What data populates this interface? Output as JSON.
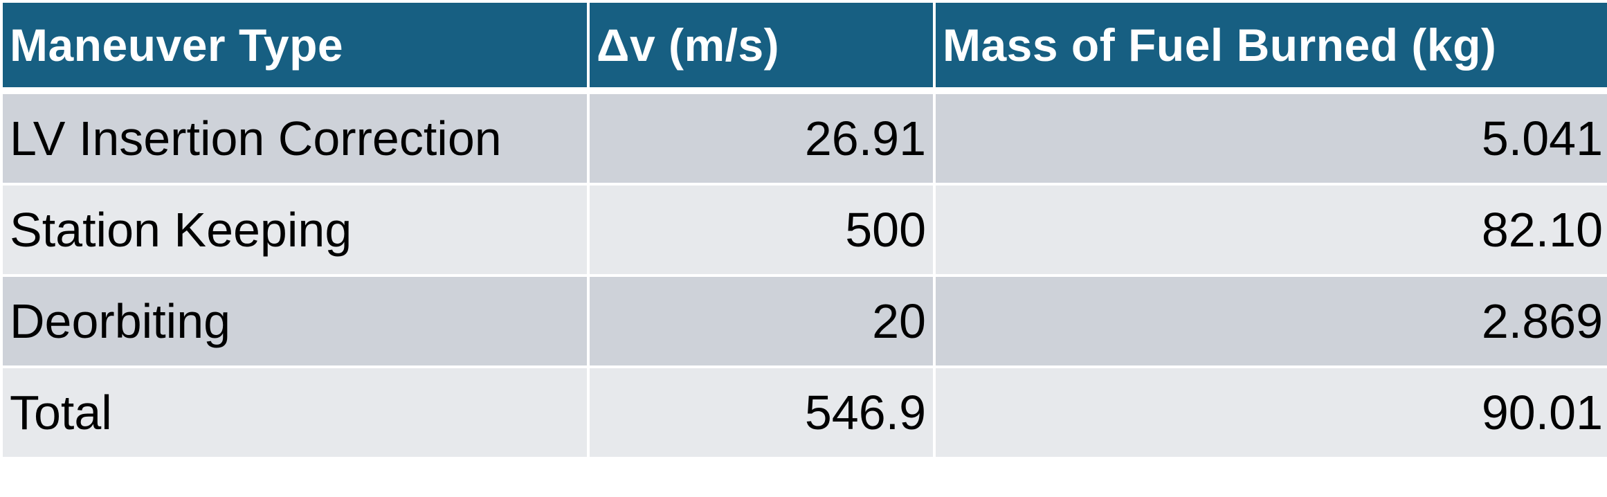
{
  "table": {
    "headers": [
      "Maneuver Type",
      "Δv (m/s)",
      "Mass of Fuel Burned (kg)"
    ],
    "rows": [
      [
        "LV Insertion Correction",
        "26.91",
        "5.041"
      ],
      [
        "Station Keeping",
        "500",
        "82.10"
      ],
      [
        "Deorbiting",
        "20",
        "2.869"
      ],
      [
        "Total",
        "546.9",
        "90.01"
      ]
    ]
  },
  "colors": {
    "header_background": "#175f82",
    "header_text": "#ffffff",
    "row_dark": "#ced2d9",
    "row_light": "#e7e9ec"
  }
}
